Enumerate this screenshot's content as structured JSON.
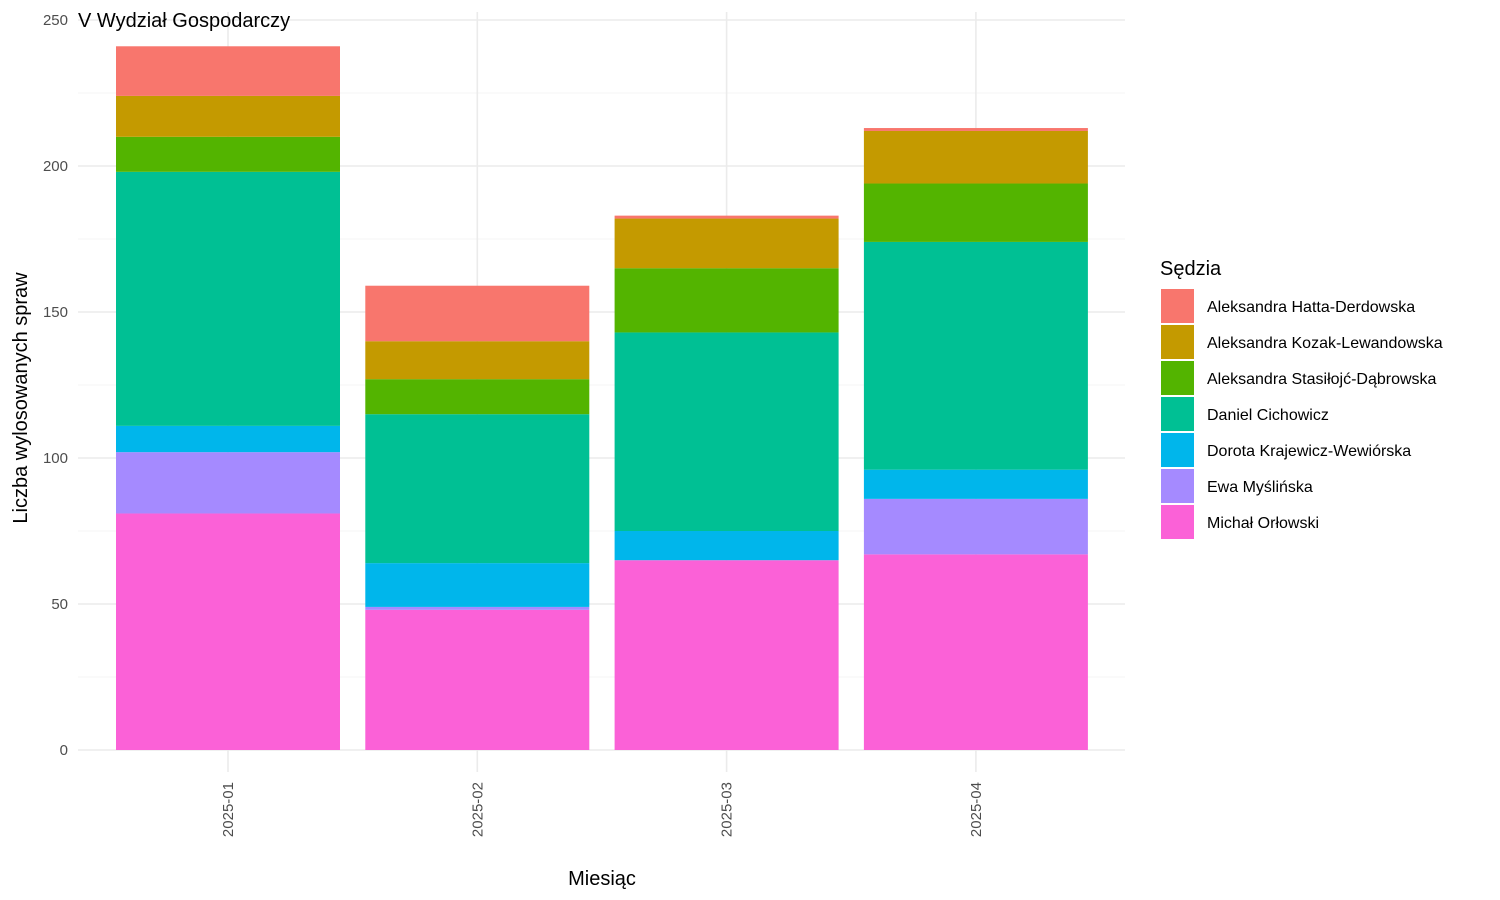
{
  "chart_data": {
    "type": "bar",
    "stacked": true,
    "title": "V Wydział Gospodarczy",
    "xlabel": "Miesiąc",
    "ylabel": "Liczba wylosowanych spraw",
    "ylim": [
      0,
      250
    ],
    "yticks": [
      0,
      50,
      100,
      150,
      200,
      250
    ],
    "grid": true,
    "legend_title": "Sędzia",
    "legend_position": "right",
    "categories": [
      "2025-01",
      "2025-02",
      "2025-03",
      "2025-04"
    ],
    "series": [
      {
        "name": "Michał Orłowski",
        "color": "#FB61D7",
        "values": [
          81,
          48,
          65,
          67
        ]
      },
      {
        "name": "Ewa Myślińska",
        "color": "#A58AFF",
        "values": [
          21,
          1,
          0,
          19
        ]
      },
      {
        "name": "Dorota Krajewicz-Wewiórska",
        "color": "#00B6EB",
        "values": [
          9,
          15,
          10,
          10
        ]
      },
      {
        "name": "Daniel Cichowicz",
        "color": "#00C094",
        "values": [
          87,
          51,
          68,
          78
        ]
      },
      {
        "name": "Aleksandra Stasiłojć-Dąbrowska",
        "color": "#53B400",
        "values": [
          12,
          12,
          22,
          20
        ]
      },
      {
        "name": "Aleksandra Kozak-Lewandowska",
        "color": "#C49A00",
        "values": [
          14,
          13,
          17,
          18
        ]
      },
      {
        "name": "Aleksandra Hatta-Derdowska",
        "color": "#F8766D",
        "values": [
          17,
          19,
          1,
          1
        ]
      }
    ],
    "legend_order": [
      "Aleksandra Hatta-Derdowska",
      "Aleksandra Kozak-Lewandowska",
      "Aleksandra Stasiłojć-Dąbrowska",
      "Daniel Cichowicz",
      "Dorota Krajewicz-Wewiórska",
      "Ewa Myślińska",
      "Michał Orłowski"
    ]
  }
}
